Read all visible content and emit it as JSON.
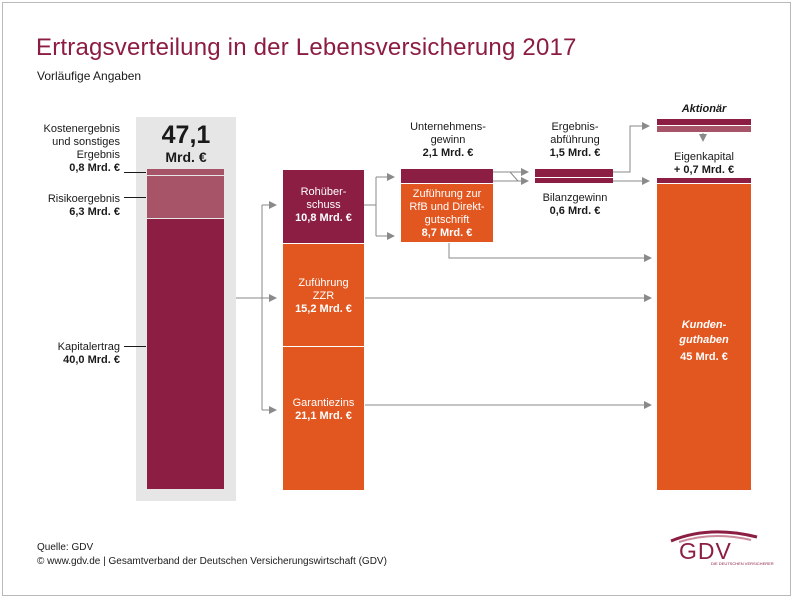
{
  "title": "Ertragsverteilung in der Lebensversicherung 2017",
  "subtitle": "Vorläufige Angaben",
  "total": {
    "value": "47,1",
    "unit": "Mrd. €"
  },
  "income": [
    {
      "label_lines": [
        "Kostenergebnis",
        "und sonstiges",
        "Ergebnis"
      ],
      "amount": "0,8 Mrd. €"
    },
    {
      "label_lines": [
        "Risikoergebnis"
      ],
      "amount": "6,3 Mrd. €"
    },
    {
      "label_lines": [
        "Kapitalertrag"
      ],
      "amount": "40,0 Mrd. €"
    }
  ],
  "middle": {
    "rohueberschuss": {
      "lines": [
        "Rohüber-",
        "schuss"
      ],
      "amount": "10,8 Mrd. €"
    },
    "zzr": {
      "lines": [
        "Zuführung",
        "ZZR"
      ],
      "amount": "15,2 Mrd. €"
    },
    "garantiezins": {
      "lines": [
        "Garantiezins"
      ],
      "amount": "21,1 Mrd. €"
    }
  },
  "unternehmensgewinn": {
    "lines": [
      "Unternehmens-",
      "gewinn"
    ],
    "amount": "2,1 Mrd. €"
  },
  "rfb": {
    "lines": [
      "Zuführung zur",
      "RfB und Direkt-",
      "gutschrift"
    ],
    "amount": "8,7 Mrd. €"
  },
  "ergebnisabfuehrung": {
    "lines": [
      "Ergebnis-",
      "abführung"
    ],
    "amount": "1,5 Mrd. €"
  },
  "bilanzgewinn": {
    "lines": [
      "Bilanzgewinn"
    ],
    "amount": "0,6 Mrd. €"
  },
  "aktionaer": "Aktionär",
  "eigenkapital": {
    "line1": "Eigenkapital",
    "line2": "+ 0,7 Mrd. €"
  },
  "kundenguthaben": {
    "lines": [
      "Kunden-",
      "guthaben"
    ],
    "amount": "45 Mrd. €"
  },
  "footer": {
    "source": "Quelle: GDV",
    "copyright": "© www.gdv.de | Gesamtverband der Deutschen Versicherungswirtschaft (GDV)"
  },
  "logo": {
    "text": "GDV",
    "tagline": "DIE DEUTSCHEN VERSICHERER"
  },
  "colors": {
    "maroon": "#8b1e42",
    "rose": "#a85468",
    "orange": "#e2561f",
    "title": "#8c1d40",
    "grey_panel": "#e6e6e6"
  }
}
